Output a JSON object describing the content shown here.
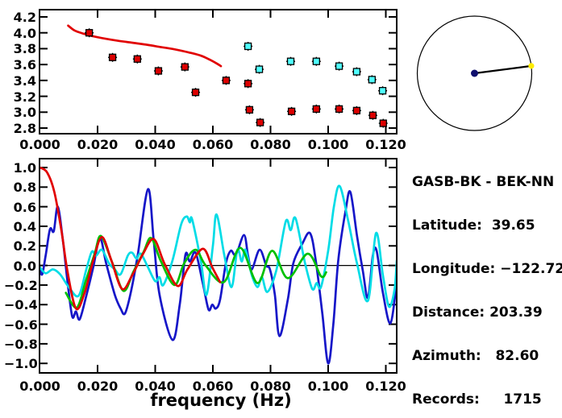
{
  "colors": {
    "red": "#e10000",
    "red_fill": "#dd0000",
    "green": "#00c000",
    "blue": "#1616c8",
    "cyan": "#00dce6",
    "cyan_fill": "#50ffff",
    "navy": "#10106e",
    "yellow": "#ffec00",
    "axis": "#000000"
  },
  "info_panel": {
    "station_pair": "GASB-BK - BEK-NN",
    "latitude": "39.65",
    "longitude": "−122.72",
    "distance": "203.39",
    "azimuth": "82.60",
    "records": "1715",
    "rows": [
      "GASB-BK - BEK-NN",
      "Latitude:  39.65",
      "Longitude: −122.72",
      "Distance: 203.39",
      "Azimuth:   82.60",
      "Records:     1715"
    ]
  },
  "bottom_axis_label": "frequency (Hz)",
  "azimuth_plot": {
    "azimuth_deg": 82.6,
    "station_dot_color_key": "navy",
    "event_dot_color_key": "yellow"
  },
  "chart_data": [
    {
      "id": "dispersion",
      "type": "scatter",
      "title": "",
      "xlabel": "",
      "ylabel": "",
      "xlim": [
        0,
        0.1238
      ],
      "ylim": [
        2.729,
        4.291
      ],
      "grid": false,
      "x_ticks": {
        "values": [
          0.0,
          0.02,
          0.04,
          0.06,
          0.08,
          0.1,
          0.12
        ],
        "labels": [
          "0.000",
          "0.020",
          "0.040",
          "0.060",
          "0.080",
          "0.100",
          "0.120"
        ]
      },
      "y_ticks": {
        "values": [
          2.8,
          3.0,
          3.2,
          3.4,
          3.6,
          3.8,
          4.0,
          4.2
        ],
        "labels": [
          "2.8",
          "3.0",
          "3.2",
          "3.4",
          "3.6",
          "3.8",
          "4.0",
          "4.2"
        ]
      },
      "series": [
        {
          "name": "model-curve",
          "kind": "line",
          "color_key": "red",
          "points": [
            [
              0.0098,
              4.09
            ],
            [
              0.012,
              4.03
            ],
            [
              0.015,
              3.99
            ],
            [
              0.018,
              3.96
            ],
            [
              0.022,
              3.93
            ],
            [
              0.027,
              3.9
            ],
            [
              0.032,
              3.875
            ],
            [
              0.037,
              3.85
            ],
            [
              0.042,
              3.82
            ],
            [
              0.047,
              3.79
            ],
            [
              0.052,
              3.75
            ],
            [
              0.056,
              3.71
            ],
            [
              0.059,
              3.66
            ],
            [
              0.0615,
              3.61
            ],
            [
              0.0628,
              3.58
            ]
          ]
        },
        {
          "name": "measured-red-squares",
          "kind": "squares",
          "color_key": "red_fill",
          "points": [
            [
              0.0171,
              4.0
            ],
            [
              0.0252,
              3.69
            ],
            [
              0.0338,
              3.67
            ],
            [
              0.0411,
              3.52
            ],
            [
              0.0503,
              3.57
            ],
            [
              0.054,
              3.25
            ],
            [
              0.0646,
              3.4
            ],
            [
              0.0722,
              3.36
            ],
            [
              0.0727,
              3.03
            ],
            [
              0.0764,
              2.87
            ],
            [
              0.0873,
              3.01
            ],
            [
              0.0959,
              3.04
            ],
            [
              0.1038,
              3.04
            ],
            [
              0.1099,
              3.02
            ],
            [
              0.1155,
              2.96
            ],
            [
              0.1191,
              2.86
            ]
          ]
        },
        {
          "name": "measured-cyan-squares",
          "kind": "squares",
          "color_key": "cyan_fill",
          "points": [
            [
              0.0722,
              3.83
            ],
            [
              0.0761,
              3.54
            ],
            [
              0.087,
              3.64
            ],
            [
              0.0959,
              3.64
            ],
            [
              0.1038,
              3.58
            ],
            [
              0.1099,
              3.51
            ],
            [
              0.1152,
              3.41
            ],
            [
              0.1189,
              3.27
            ]
          ]
        }
      ]
    },
    {
      "id": "correlation",
      "type": "line",
      "title": "",
      "xlabel": "frequency (Hz)",
      "ylabel": "",
      "xlim": [
        0,
        0.1238
      ],
      "ylim": [
        -1.097,
        1.09
      ],
      "grid": false,
      "zero_line": true,
      "x_ticks": {
        "values": [
          0.0,
          0.02,
          0.04,
          0.06,
          0.08,
          0.1,
          0.12
        ],
        "labels": [
          "0.000",
          "0.020",
          "0.040",
          "0.060",
          "0.080",
          "0.100",
          "0.120"
        ]
      },
      "y_ticks": {
        "values": [
          1.0,
          0.8,
          0.6,
          0.4,
          0.2,
          0.0,
          -0.2,
          -0.4,
          -0.6,
          -0.8,
          -1.0
        ],
        "labels": [
          "1.0",
          "0.8",
          "0.6",
          "0.4",
          "0.2",
          "0.0",
          "−0.2",
          "−0.4",
          "−0.6",
          "−0.8",
          "−1.0"
        ]
      },
      "series": [
        {
          "name": "trace-blue",
          "kind": "line",
          "color_key": "blue",
          "points": [
            [
              0.0,
              -0.04
            ],
            [
              0.0008,
              -0.09
            ],
            [
              0.002,
              0.1
            ],
            [
              0.0035,
              0.37
            ],
            [
              0.0048,
              0.35
            ],
            [
              0.0062,
              0.6
            ],
            [
              0.008,
              0.25
            ],
            [
              0.0095,
              -0.15
            ],
            [
              0.0112,
              -0.52
            ],
            [
              0.0125,
              -0.47
            ],
            [
              0.0138,
              -0.55
            ],
            [
              0.016,
              -0.32
            ],
            [
              0.0185,
              -0.02
            ],
            [
              0.0208,
              0.28
            ],
            [
              0.023,
              0.02
            ],
            [
              0.026,
              -0.3
            ],
            [
              0.028,
              -0.44
            ],
            [
              0.0295,
              -0.49
            ],
            [
              0.0315,
              -0.28
            ],
            [
              0.034,
              0.12
            ],
            [
              0.0375,
              0.78
            ],
            [
              0.0395,
              0.25
            ],
            [
              0.0415,
              -0.3
            ],
            [
              0.046,
              -0.76
            ],
            [
              0.0485,
              -0.4
            ],
            [
              0.0505,
              0.11
            ],
            [
              0.052,
              0.04
            ],
            [
              0.054,
              0.13
            ],
            [
              0.0565,
              -0.18
            ],
            [
              0.0585,
              -0.45
            ],
            [
              0.0598,
              -0.4
            ],
            [
              0.061,
              -0.44
            ],
            [
              0.0625,
              -0.35
            ],
            [
              0.0645,
              0.02
            ],
            [
              0.0662,
              0.15
            ],
            [
              0.068,
              0.11
            ],
            [
              0.0708,
              0.31
            ],
            [
              0.0722,
              0.1
            ],
            [
              0.0735,
              -0.04
            ],
            [
              0.0762,
              0.16
            ],
            [
              0.0785,
              0.0
            ],
            [
              0.0798,
              -0.04
            ],
            [
              0.0815,
              -0.3
            ],
            [
              0.0831,
              -0.72
            ],
            [
              0.086,
              -0.35
            ],
            [
              0.0879,
              0.02
            ],
            [
              0.091,
              0.22
            ],
            [
              0.0937,
              0.33
            ],
            [
              0.0957,
              0.05
            ],
            [
              0.098,
              -0.5
            ],
            [
              0.1,
              -1.0
            ],
            [
              0.1018,
              -0.6
            ],
            [
              0.1035,
              0.05
            ],
            [
              0.106,
              0.55
            ],
            [
              0.1077,
              0.75
            ],
            [
              0.11,
              0.3
            ],
            [
              0.112,
              -0.05
            ],
            [
              0.1138,
              -0.33
            ],
            [
              0.1155,
              0.1
            ],
            [
              0.1168,
              0.15
            ],
            [
              0.119,
              -0.28
            ],
            [
              0.1216,
              -0.59
            ],
            [
              0.1238,
              -0.16
            ]
          ]
        },
        {
          "name": "trace-cyan",
          "kind": "line",
          "color_key": "cyan",
          "points": [
            [
              0.0,
              -0.02
            ],
            [
              0.002,
              -0.08
            ],
            [
              0.0045,
              -0.04
            ],
            [
              0.007,
              -0.09
            ],
            [
              0.01,
              -0.22
            ],
            [
              0.0134,
              -0.31
            ],
            [
              0.016,
              -0.05
            ],
            [
              0.018,
              0.14
            ],
            [
              0.0195,
              0.1
            ],
            [
              0.0215,
              0.16
            ],
            [
              0.024,
              0.02
            ],
            [
              0.026,
              -0.04
            ],
            [
              0.028,
              -0.09
            ],
            [
              0.0305,
              0.1
            ],
            [
              0.032,
              0.13
            ],
            [
              0.0335,
              0.07
            ],
            [
              0.035,
              0.12
            ],
            [
              0.0375,
              -0.02
            ],
            [
              0.04,
              -0.16
            ],
            [
              0.0415,
              -0.12
            ],
            [
              0.0428,
              -0.2
            ],
            [
              0.046,
              0.05
            ],
            [
              0.049,
              0.42
            ],
            [
              0.0509,
              0.5
            ],
            [
              0.052,
              0.44
            ],
            [
              0.0528,
              0.47
            ],
            [
              0.0558,
              0.05
            ],
            [
              0.0578,
              -0.3
            ],
            [
              0.06,
              0.2
            ],
            [
              0.0613,
              0.52
            ],
            [
              0.064,
              0.1
            ],
            [
              0.0665,
              -0.22
            ],
            [
              0.0685,
              0.16
            ],
            [
              0.07,
              0.04
            ],
            [
              0.0713,
              0.16
            ],
            [
              0.0735,
              -0.1
            ],
            [
              0.0755,
              -0.22
            ],
            [
              0.077,
              -0.12
            ],
            [
              0.0789,
              -0.27
            ],
            [
              0.082,
              -0.05
            ],
            [
              0.0853,
              0.45
            ],
            [
              0.087,
              0.36
            ],
            [
              0.0887,
              0.48
            ],
            [
              0.092,
              0.02
            ],
            [
              0.0945,
              -0.24
            ],
            [
              0.096,
              -0.18
            ],
            [
              0.0975,
              -0.22
            ],
            [
              0.1,
              0.15
            ],
            [
              0.102,
              0.6
            ],
            [
              0.104,
              0.81
            ],
            [
              0.107,
              0.45
            ],
            [
              0.11,
              0.02
            ],
            [
              0.1138,
              -0.36
            ],
            [
              0.1166,
              0.33
            ],
            [
              0.119,
              -0.1
            ],
            [
              0.1211,
              -0.42
            ],
            [
              0.123,
              -0.25
            ],
            [
              0.1238,
              0.05
            ]
          ]
        },
        {
          "name": "trace-green",
          "kind": "line",
          "color_key": "green",
          "points": [
            [
              0.009,
              -0.28
            ],
            [
              0.0128,
              -0.43
            ],
            [
              0.016,
              -0.15
            ],
            [
              0.019,
              0.12
            ],
            [
              0.0212,
              0.3
            ],
            [
              0.0252,
              0.02
            ],
            [
              0.029,
              -0.26
            ],
            [
              0.0325,
              -0.06
            ],
            [
              0.036,
              0.14
            ],
            [
              0.0386,
              0.28
            ],
            [
              0.042,
              0.04
            ],
            [
              0.0467,
              -0.2
            ],
            [
              0.05,
              0.02
            ],
            [
              0.054,
              0.16
            ],
            [
              0.0575,
              0.0
            ],
            [
              0.0638,
              -0.17
            ],
            [
              0.0695,
              0.18
            ],
            [
              0.0755,
              -0.18
            ],
            [
              0.0805,
              0.15
            ],
            [
              0.086,
              -0.13
            ],
            [
              0.0929,
              0.12
            ],
            [
              0.0975,
              -0.11
            ],
            [
              0.0993,
              -0.07
            ]
          ]
        },
        {
          "name": "trace-red",
          "kind": "line",
          "color_key": "red",
          "points": [
            [
              0.0,
              1.0
            ],
            [
              0.0025,
              0.95
            ],
            [
              0.005,
              0.75
            ],
            [
              0.0075,
              0.35
            ],
            [
              0.0095,
              -0.05
            ],
            [
              0.0125,
              -0.44
            ],
            [
              0.0155,
              -0.28
            ],
            [
              0.0185,
              0.05
            ],
            [
              0.0215,
              0.29
            ],
            [
              0.0248,
              0.05
            ],
            [
              0.0285,
              -0.24
            ],
            [
              0.032,
              -0.1
            ],
            [
              0.0358,
              0.12
            ],
            [
              0.0395,
              0.27
            ],
            [
              0.0432,
              0.02
            ],
            [
              0.0478,
              -0.21
            ],
            [
              0.0512,
              -0.04
            ],
            [
              0.0565,
              0.17
            ],
            [
              0.0598,
              -0.02
            ],
            [
              0.0625,
              -0.17
            ]
          ]
        }
      ]
    }
  ]
}
